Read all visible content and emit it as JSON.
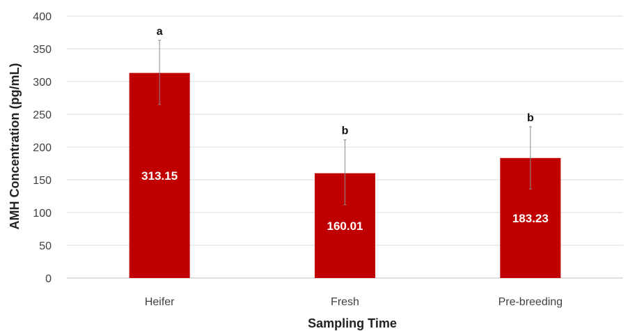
{
  "chart_data": {
    "type": "bar",
    "title": "",
    "xlabel": "Sampling Time",
    "ylabel": "AMH Concentration (pg/mL)",
    "ylim": [
      0,
      400
    ],
    "yticks": [
      0,
      50,
      100,
      150,
      200,
      250,
      300,
      350,
      400
    ],
    "grid": true,
    "legend": "none",
    "categories": [
      "Heifer",
      "Fresh",
      "Pre-breeding"
    ],
    "values": [
      313.15,
      160.01,
      183.23
    ],
    "value_labels": [
      "313.15",
      "160.01",
      "183.23"
    ],
    "error_low": [
      265,
      112,
      136
    ],
    "error_high": [
      363,
      211,
      231
    ],
    "significance": [
      "a",
      "b",
      "b"
    ],
    "bar_color": "#c00000",
    "error_color": "#8c8c8c",
    "grid_color": "#d9d9d9"
  }
}
